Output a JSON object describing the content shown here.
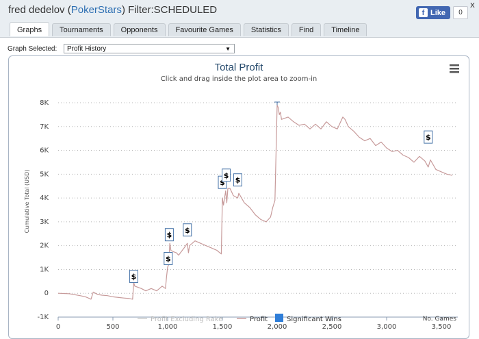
{
  "header": {
    "player_name": "fred dedelov",
    "site_name": "PokerStars",
    "filter_text": "Filter:SCHEDULED",
    "close_glyph": "x",
    "like_label": "Like",
    "like_count": "0"
  },
  "tabs": [
    {
      "label": "Graphs",
      "active": true
    },
    {
      "label": "Tournaments"
    },
    {
      "label": "Opponents"
    },
    {
      "label": "Favourite Games"
    },
    {
      "label": "Statistics"
    },
    {
      "label": "Find"
    },
    {
      "label": "Timeline"
    }
  ],
  "graph_select": {
    "label": "Graph Selected:",
    "value": "Profit History"
  },
  "colors": {
    "accent": "#2d6fb2",
    "profit_line": "#c79a9a",
    "sig_wins": "#2f7ed8",
    "excl_rake": "#cccccc"
  },
  "chart_data": {
    "type": "line",
    "title": "Total Profit",
    "subtitle": "Click and drag inside the plot area to zoom-in",
    "xlabel": "No. Games",
    "ylabel": "Cumulative Total (USD)",
    "xlim": [
      0,
      3600
    ],
    "ylim": [
      -1000,
      8000
    ],
    "x_ticks": [
      "0",
      "500",
      "1,000",
      "1,500",
      "2,000",
      "2,500",
      "3,000",
      "3,500"
    ],
    "x_tick_values": [
      0,
      500,
      1000,
      1500,
      2000,
      2500,
      3000,
      3500
    ],
    "y_ticks": [
      "-1K",
      "0",
      "1K",
      "2K",
      "3K",
      "4K",
      "5K",
      "6K",
      "7K",
      "8K"
    ],
    "y_tick_values": [
      -1000,
      0,
      1000,
      2000,
      3000,
      4000,
      5000,
      6000,
      7000,
      8000
    ],
    "grid": true,
    "legend": {
      "position": "bottom",
      "items": [
        "Profit Excluding Rake",
        "Profit",
        "Significant Wins"
      ]
    },
    "series": [
      {
        "name": "Profit",
        "x": [
          0,
          100,
          200,
          250,
          300,
          320,
          340,
          360,
          400,
          450,
          500,
          560,
          600,
          650,
          680,
          690,
          700,
          760,
          800,
          850,
          900,
          950,
          980,
          990,
          1000,
          1010,
          1015,
          1020,
          1030,
          1050,
          1080,
          1100,
          1150,
          1180,
          1190,
          1200,
          1250,
          1300,
          1350,
          1400,
          1450,
          1490,
          1500,
          1510,
          1520,
          1530,
          1540,
          1550,
          1570,
          1600,
          1640,
          1650,
          1700,
          1750,
          1800,
          1850,
          1900,
          1940,
          1960,
          1980,
          2000,
          2010,
          2020,
          2030,
          2040,
          2100,
          2150,
          2200,
          2250,
          2300,
          2350,
          2400,
          2450,
          2500,
          2550,
          2600,
          2620,
          2650,
          2700,
          2750,
          2800,
          2850,
          2900,
          2950,
          3000,
          3050,
          3100,
          3150,
          3200,
          3250,
          3300,
          3350,
          3380,
          3400,
          3450,
          3500,
          3550,
          3600
        ],
        "y": [
          0,
          -20,
          -100,
          -150,
          -250,
          50,
          0,
          -50,
          -80,
          -100,
          -150,
          -180,
          -200,
          -220,
          -250,
          450,
          300,
          200,
          100,
          200,
          100,
          300,
          200,
          700,
          1100,
          1200,
          1700,
          2100,
          1800,
          1750,
          1700,
          1600,
          1900,
          2100,
          1700,
          2000,
          2200,
          2100,
          2000,
          1900,
          1800,
          1650,
          4000,
          3700,
          4000,
          4300,
          3800,
          4400,
          4400,
          4100,
          4000,
          4200,
          3800,
          3600,
          3300,
          3100,
          3000,
          3200,
          3600,
          3900,
          7900,
          7800,
          7500,
          7600,
          7300,
          7400,
          7200,
          7050,
          7100,
          6900,
          7100,
          6900,
          7200,
          7000,
          6900,
          7400,
          7300,
          7000,
          6800,
          6550,
          6400,
          6500,
          6200,
          6350,
          6100,
          5950,
          6000,
          5800,
          5700,
          5500,
          5750,
          5550,
          5300,
          5600,
          5200,
          5100,
          5000,
          4950
        ]
      }
    ],
    "significant_wins": [
      {
        "x": 690,
        "y": 450,
        "label": "$"
      },
      {
        "x": 1005,
        "y": 1200,
        "label": "$"
      },
      {
        "x": 1015,
        "y": 2200,
        "label": "$"
      },
      {
        "x": 1180,
        "y": 2400,
        "label": "$"
      },
      {
        "x": 1500,
        "y": 4400,
        "label": "$"
      },
      {
        "x": 1535,
        "y": 4700,
        "label": "$"
      },
      {
        "x": 1640,
        "y": 4500,
        "label": "$"
      },
      {
        "x": 3380,
        "y": 6300,
        "label": "$"
      }
    ],
    "peak_marker_x": 2000
  }
}
